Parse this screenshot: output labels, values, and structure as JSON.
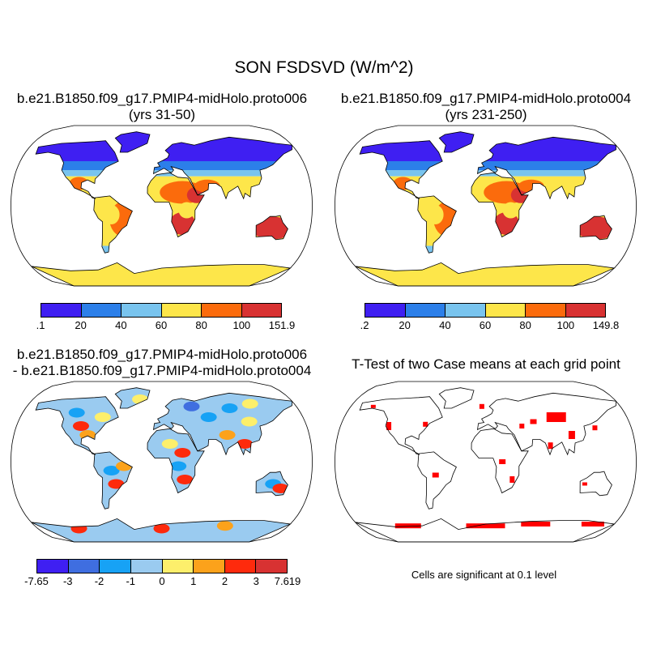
{
  "main_title": "SON FSDSVD (W/m^2)",
  "panels": {
    "top_left": {
      "title_line1": "b.e21.B1850.f09_g17.PMIP4-midHolo.proto006",
      "title_line2": "(yrs 31-50)",
      "colorbar_colors": [
        "#3f1ff2",
        "#2c7fe9",
        "#79c4ee",
        "#fde64a",
        "#fb6b0c",
        "#d83232"
      ],
      "colorbar_labels": [
        ".1",
        "20",
        "40",
        "60",
        "80",
        "100",
        "151.9"
      ]
    },
    "top_right": {
      "title_line1": "b.e21.B1850.f09_g17.PMIP4-midHolo.proto004",
      "title_line2": "(yrs 231-250)",
      "colorbar_colors": [
        "#3f1ff2",
        "#2c7fe9",
        "#79c4ee",
        "#fde64a",
        "#fb6b0c",
        "#d83232"
      ],
      "colorbar_labels": [
        ".2",
        "20",
        "40",
        "60",
        "80",
        "100",
        "149.8"
      ]
    },
    "bottom_left": {
      "title_line1": "b.e21.B1850.f09_g17.PMIP4-midHolo.proto006",
      "title_line2": "- b.e21.B1850.f09_g17.PMIP4-midHolo.proto004",
      "colorbar_colors": [
        "#3f1ff2",
        "#3f6ee0",
        "#17a2f5",
        "#9acbf0",
        "#fdef6b",
        "#fca21b",
        "#fe2a0c",
        "#d83232"
      ],
      "colorbar_labels": [
        "-7.65",
        "-3",
        "-2",
        "-1",
        "0",
        "1",
        "2",
        "3",
        "7.619"
      ]
    },
    "bottom_right": {
      "title_line1": "T-Test of two Case means at each grid point",
      "note": "Cells are significant at 0.1 level",
      "significance_color": "#ff0000"
    }
  }
}
